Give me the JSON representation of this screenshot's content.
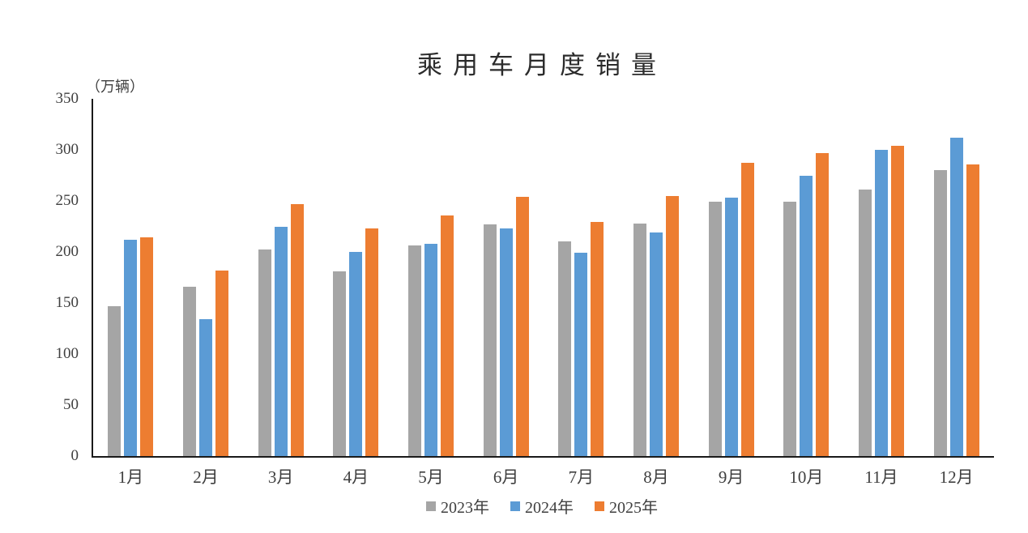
{
  "chart_data": {
    "type": "bar",
    "title": "乘用车月度销量",
    "ylabel": "（万辆）",
    "xlabel": "",
    "ylim": [
      0,
      350
    ],
    "yticks": [
      0,
      50,
      100,
      150,
      200,
      250,
      300,
      350
    ],
    "grid": false,
    "legend_position": "bottom",
    "categories": [
      "1月",
      "2月",
      "3月",
      "4月",
      "5月",
      "6月",
      "7月",
      "8月",
      "9月",
      "10月",
      "11月",
      "12月"
    ],
    "series": [
      {
        "name": "2023年",
        "color": "#A5A5A5",
        "values": [
          147,
          166,
          202,
          181,
          206,
          227,
          210,
          228,
          249,
          249,
          261,
          280
        ]
      },
      {
        "name": "2024年",
        "color": "#5B9BD5",
        "values": [
          212,
          134,
          225,
          200,
          208,
          223,
          199,
          219,
          253,
          275,
          300,
          312
        ]
      },
      {
        "name": "2025年",
        "color": "#ED7D31",
        "values": [
          214,
          182,
          247,
          223,
          236,
          254,
          229,
          255,
          287,
          297,
          304,
          286
        ]
      }
    ],
    "axis_color": "#1a1a1a",
    "text_color": "#3f3f3f"
  }
}
